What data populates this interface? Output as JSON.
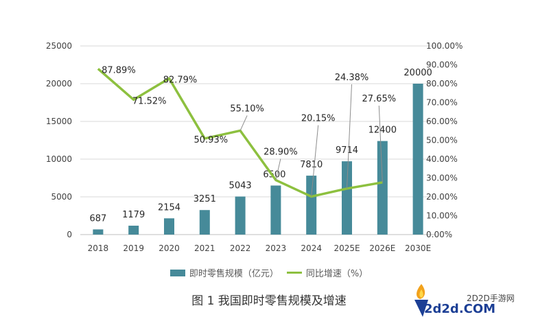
{
  "chart_data": {
    "type": "bar+line",
    "title": "图 1 我国即时零售规模及增速",
    "categories": [
      "2018",
      "2019",
      "2020",
      "2021",
      "2022",
      "2023",
      "2024",
      "2025E",
      "2026E",
      "2030E"
    ],
    "series": [
      {
        "name": "即时零售规模（亿元）",
        "type": "bar",
        "axis": "left",
        "color": "#468a99",
        "values": [
          687,
          1179,
          2154,
          3251,
          5043,
          6500,
          7810,
          9714,
          12400,
          20000
        ],
        "labels": [
          "687",
          "1179",
          "2154",
          "3251",
          "5043",
          "6500",
          "7810",
          "9714",
          "12400",
          "20000"
        ]
      },
      {
        "name": "同比增速（%）",
        "type": "line",
        "axis": "right",
        "color": "#8dc03f",
        "values": [
          87.89,
          71.52,
          82.79,
          50.93,
          55.1,
          28.9,
          20.15,
          24.38,
          27.65,
          null
        ],
        "labels": [
          "87.89%",
          "71.52%",
          "82.79%",
          "50.93%",
          "55.10%",
          "28.90%",
          "20.15%",
          "24.38%",
          "27.65%",
          ""
        ]
      }
    ],
    "left_axis": {
      "ylim": [
        0,
        25000
      ],
      "ticks": [
        "0",
        "5000",
        "10000",
        "15000",
        "20000",
        "25000"
      ]
    },
    "right_axis": {
      "ylim": [
        0,
        100
      ],
      "ticks": [
        "0.00%",
        "10.00%",
        "20.00%",
        "30.00%",
        "40.00%",
        "50.00%",
        "60.00%",
        "70.00%",
        "80.00%",
        "90.00%",
        "100.00%"
      ]
    },
    "grid": true,
    "legend": "bottom"
  },
  "watermark": {
    "cn": "2D2D手游网",
    "en": "2d2d.COM"
  }
}
